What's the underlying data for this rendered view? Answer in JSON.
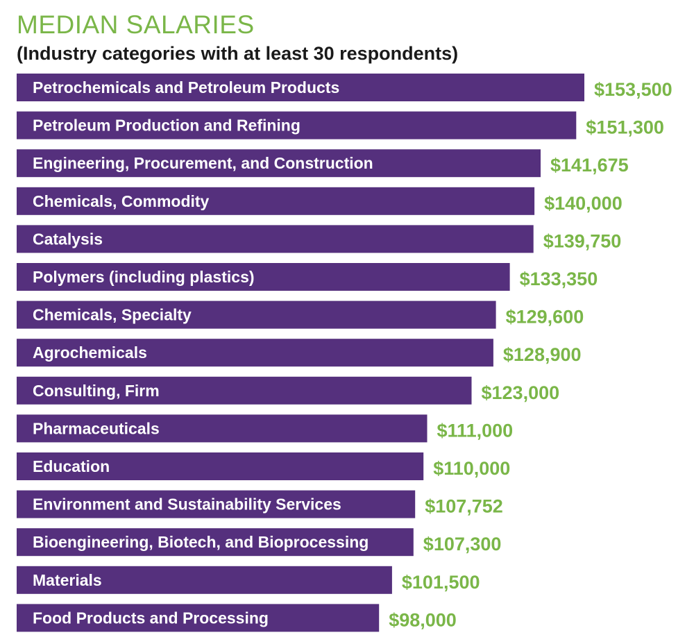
{
  "chart_data": {
    "type": "bar",
    "orientation": "horizontal",
    "title": "MEDIAN SALARIES",
    "subtitle": "(Industry categories with at least 30 respondents)",
    "categories": [
      "Petrochemicals and Petroleum Products",
      "Petroleum Production and Refining",
      "Engineering, Procurement, and Construction",
      "Chemicals, Commodity",
      "Catalysis",
      "Polymers (including plastics)",
      "Chemicals, Specialty",
      "Agrochemicals",
      "Consulting, Firm",
      "Pharmaceuticals",
      "Education",
      "Environment and Sustainability Services",
      "Bioengineering, Biotech, and Bioprocessing",
      "Materials",
      "Food Products and Processing"
    ],
    "values": [
      153500,
      151300,
      141675,
      140000,
      139750,
      133350,
      129600,
      128900,
      123000,
      111000,
      110000,
      107752,
      107300,
      101500,
      98000
    ],
    "value_labels": [
      "$153,500",
      "$151,300",
      "$141,675",
      "$140,000",
      "$139,750",
      "$133,350",
      "$129,600",
      "$128,900",
      "$123,000",
      "$111,000",
      "$110,000",
      "$107,752",
      "$107,300",
      "$101,500",
      "$98,000"
    ],
    "grid": false,
    "legend": "none",
    "colors": {
      "bar": "#55307d",
      "value": "#7ab648",
      "title": "#7ab648"
    }
  }
}
